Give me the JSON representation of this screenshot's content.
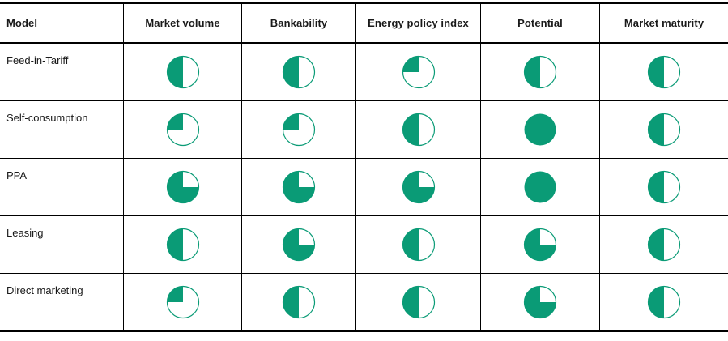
{
  "colors": {
    "accent": "#0a9b76",
    "border": "#000000",
    "background": "#ffffff"
  },
  "chart_data": {
    "type": "table",
    "title": "",
    "value_encoding": "harvey-ball fraction filled (0.25 = quarter, 0.5 = half, 0.75 = three-quarter, 1 = full), filled counterclockwise from top",
    "columns": [
      "Model",
      "Market volume",
      "Bankability",
      "Energy policy index",
      "Potential",
      "Market maturity"
    ],
    "rows": [
      {
        "label": "Feed-in-Tariff",
        "values": [
          0.5,
          0.5,
          0.25,
          0.5,
          0.5
        ]
      },
      {
        "label": "Self-consumption",
        "values": [
          0.25,
          0.25,
          0.5,
          1,
          0.5
        ]
      },
      {
        "label": "PPA",
        "values": [
          0.75,
          0.75,
          0.75,
          1,
          0.5
        ]
      },
      {
        "label": "Leasing",
        "values": [
          0.5,
          0.75,
          0.5,
          0.75,
          0.5
        ]
      },
      {
        "label": "Direct marketing",
        "values": [
          0.25,
          0.5,
          0.5,
          0.75,
          0.5
        ]
      }
    ]
  }
}
